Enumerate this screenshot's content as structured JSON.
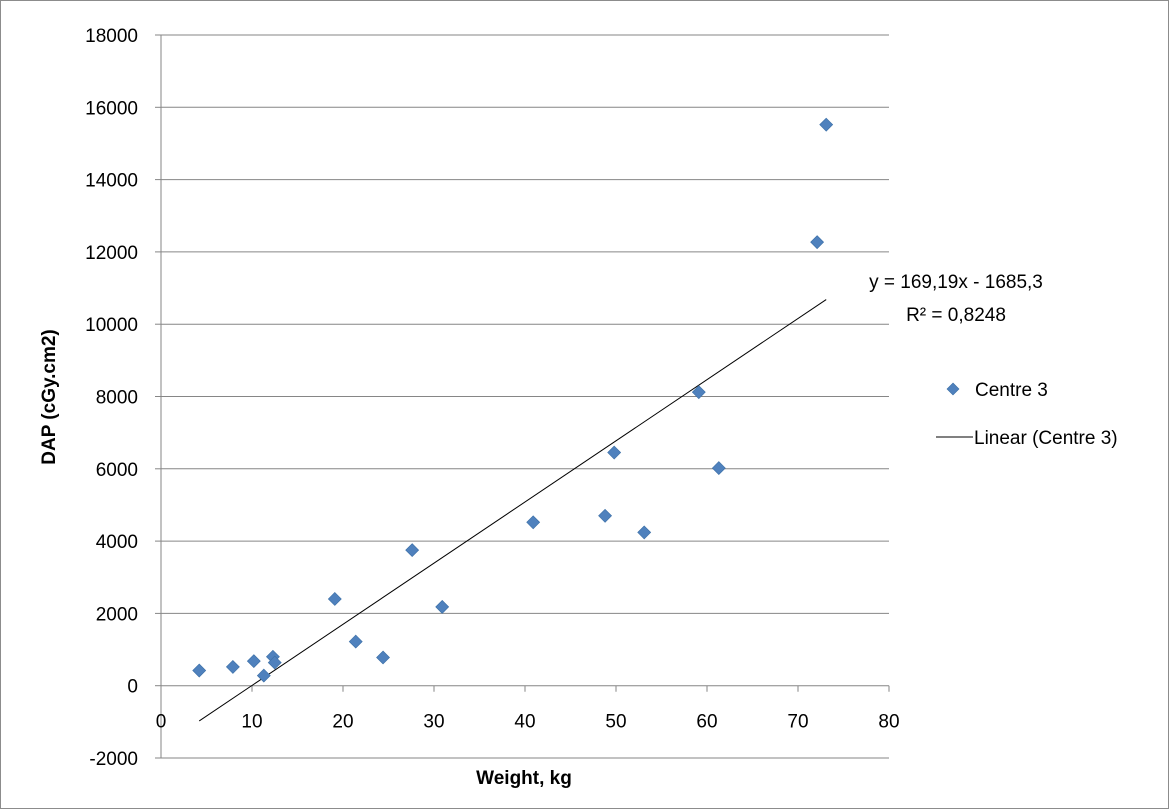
{
  "chart_data": {
    "type": "scatter",
    "xlabel": "Weight, kg",
    "ylabel": "DAP (cGy.cm2)",
    "xlim": [
      0,
      80
    ],
    "ylim": [
      -2000,
      18000
    ],
    "x_ticks": [
      "0",
      "10",
      "20",
      "30",
      "40",
      "50",
      "60",
      "70",
      "80"
    ],
    "y_ticks": [
      "-2000",
      "0",
      "2000",
      "4000",
      "6000",
      "8000",
      "10000",
      "12000",
      "14000",
      "16000",
      "18000"
    ],
    "grid": "horizontal",
    "legend_position": "right",
    "series": [
      {
        "name": "Centre 3",
        "marker": "diamond",
        "color": "#4f81bd",
        "points": [
          {
            "x": 4.2,
            "y": 420
          },
          {
            "x": 7.9,
            "y": 520
          },
          {
            "x": 10.2,
            "y": 680
          },
          {
            "x": 11.3,
            "y": 280
          },
          {
            "x": 12.3,
            "y": 800
          },
          {
            "x": 12.5,
            "y": 640
          },
          {
            "x": 19.1,
            "y": 2400
          },
          {
            "x": 21.4,
            "y": 1220
          },
          {
            "x": 24.4,
            "y": 780
          },
          {
            "x": 27.6,
            "y": 3750
          },
          {
            "x": 30.9,
            "y": 2180
          },
          {
            "x": 40.9,
            "y": 4520
          },
          {
            "x": 48.8,
            "y": 4700
          },
          {
            "x": 49.8,
            "y": 6450
          },
          {
            "x": 53.1,
            "y": 4240
          },
          {
            "x": 59.1,
            "y": 8120
          },
          {
            "x": 61.3,
            "y": 6020
          },
          {
            "x": 72.1,
            "y": 12270
          },
          {
            "x": 73.1,
            "y": 15520
          }
        ]
      },
      {
        "name": "Linear (Centre 3)",
        "type": "line",
        "color": "#000000",
        "slope": 169.19,
        "intercept": -1685.3,
        "x_range": [
          4.2,
          73.1
        ]
      }
    ],
    "annotations": {
      "equation": "y = 169,19x - 1685,3",
      "r_squared": "R² = 0,8248"
    }
  }
}
